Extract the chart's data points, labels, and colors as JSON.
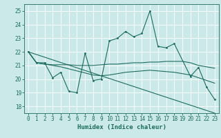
{
  "xlabel": "Humidex (Indice chaleur)",
  "xlim": [
    -0.5,
    23.5
  ],
  "ylim": [
    17.5,
    25.5
  ],
  "yticks": [
    18,
    19,
    20,
    21,
    22,
    23,
    24,
    25
  ],
  "xticks": [
    0,
    1,
    2,
    3,
    4,
    5,
    6,
    7,
    8,
    9,
    10,
    11,
    12,
    13,
    14,
    15,
    16,
    17,
    18,
    19,
    20,
    21,
    22,
    23
  ],
  "bg_color": "#cce9e9",
  "line_color": "#1a6b5e",
  "grid_color": "#ffffff",
  "line1_x": [
    0,
    1,
    2,
    3,
    4,
    5,
    6,
    7,
    8,
    9,
    10,
    11,
    12,
    13,
    14,
    15,
    16,
    17,
    18,
    20,
    21,
    22,
    23
  ],
  "line1_y": [
    22,
    21.2,
    21.2,
    20.1,
    20.5,
    19.1,
    19.0,
    21.9,
    19.9,
    20.0,
    22.8,
    23.0,
    23.5,
    23.1,
    23.35,
    25.0,
    22.4,
    22.3,
    22.6,
    20.2,
    20.85,
    19.4,
    18.5
  ],
  "line2_x": [
    0,
    1,
    2,
    3,
    4,
    5,
    6,
    7,
    8,
    9,
    10,
    11,
    12,
    13,
    14,
    15,
    16,
    17,
    18,
    19,
    20,
    21,
    22,
    23
  ],
  "line2_y": [
    22.0,
    21.2,
    21.1,
    21.05,
    21.05,
    21.05,
    21.0,
    21.0,
    21.0,
    21.05,
    21.1,
    21.1,
    21.15,
    21.2,
    21.2,
    21.25,
    21.25,
    21.3,
    21.3,
    21.3,
    21.2,
    21.0,
    20.9,
    20.8
  ],
  "line3_x": [
    0,
    1,
    2,
    3,
    4,
    5,
    6,
    7,
    8,
    9,
    10,
    11,
    12,
    13,
    14,
    15,
    16,
    17,
    18,
    19,
    20,
    21,
    22,
    23
  ],
  "line3_y": [
    22.0,
    21.2,
    21.1,
    21.0,
    20.9,
    20.75,
    20.6,
    20.45,
    20.3,
    20.25,
    20.3,
    20.4,
    20.5,
    20.55,
    20.6,
    20.65,
    20.6,
    20.55,
    20.5,
    20.4,
    20.3,
    20.1,
    19.9,
    19.7
  ],
  "line4_x": [
    0,
    23
  ],
  "line4_y": [
    22,
    17.5
  ]
}
